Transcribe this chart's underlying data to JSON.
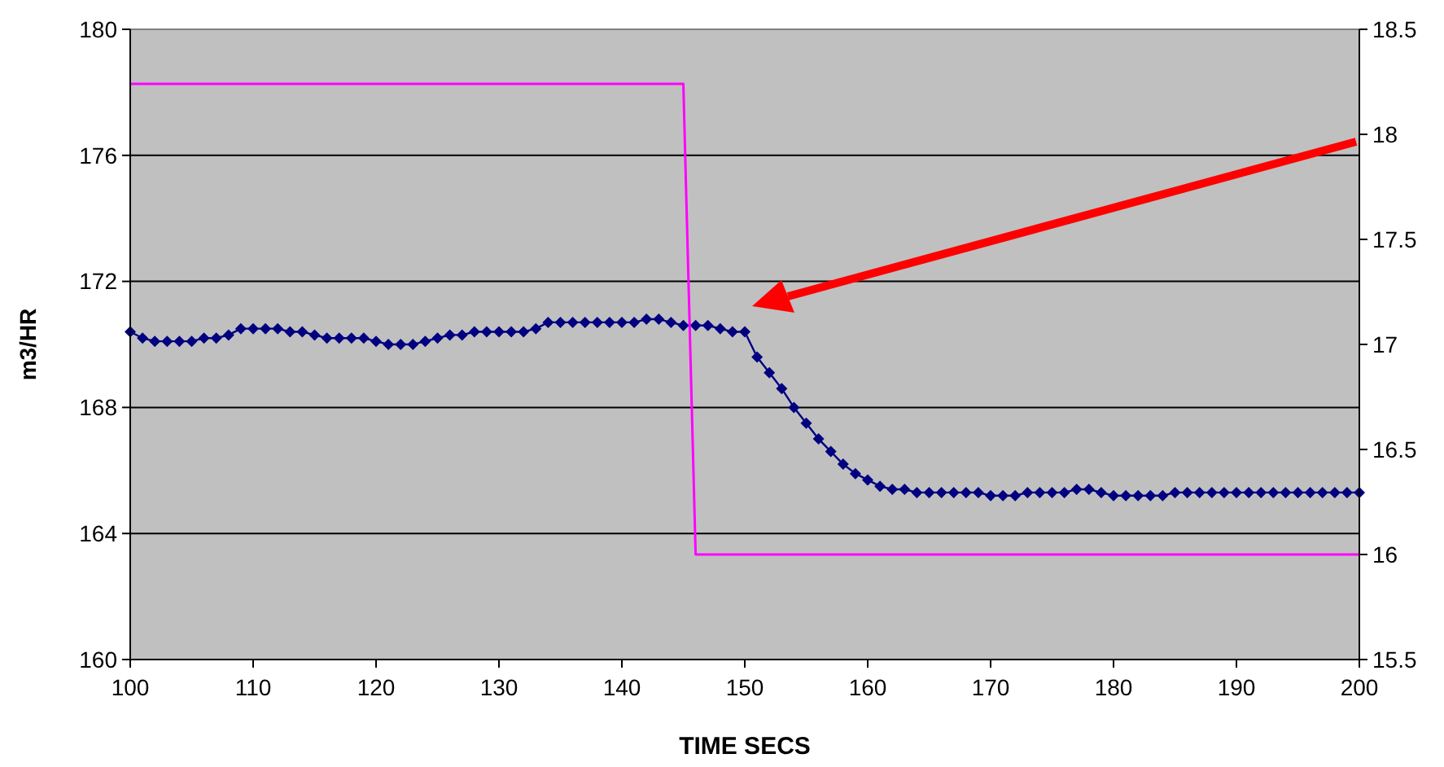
{
  "chart_data": {
    "type": "line",
    "xlabel": "TIME SECS",
    "ylabel": "m3/HR",
    "xlim": [
      100,
      200
    ],
    "xticks": [
      100,
      110,
      120,
      130,
      140,
      150,
      160,
      170,
      180,
      190,
      200
    ],
    "ylim": [
      160,
      180
    ],
    "yticks": [
      160,
      164,
      168,
      172,
      176,
      180
    ],
    "y2lim": [
      15.5,
      18.5
    ],
    "y2ticks": [
      15.5,
      16,
      16.5,
      17,
      17.5,
      18,
      18.5
    ],
    "grid": "y",
    "series": [
      {
        "color": "#000080",
        "marker": "diamond",
        "x": [
          100,
          101,
          102,
          103,
          104,
          105,
          106,
          107,
          108,
          109,
          110,
          111,
          112,
          113,
          114,
          115,
          116,
          117,
          118,
          119,
          120,
          121,
          122,
          123,
          124,
          125,
          126,
          127,
          128,
          129,
          130,
          131,
          132,
          133,
          134,
          135,
          136,
          137,
          138,
          139,
          140,
          141,
          142,
          143,
          144,
          145,
          146,
          147,
          148,
          149,
          150,
          151,
          152,
          153,
          154,
          155,
          156,
          157,
          158,
          159,
          160,
          161,
          162,
          163,
          164,
          165,
          166,
          167,
          168,
          169,
          170,
          171,
          172,
          173,
          174,
          175,
          176,
          177,
          178,
          179,
          180,
          181,
          182,
          183,
          184,
          185,
          186,
          187,
          188,
          189,
          190,
          191,
          192,
          193,
          194,
          195,
          196,
          197,
          198,
          199,
          200
        ],
        "values": [
          170.4,
          170.2,
          170.1,
          170.1,
          170.1,
          170.1,
          170.2,
          170.2,
          170.3,
          170.5,
          170.5,
          170.5,
          170.5,
          170.4,
          170.4,
          170.3,
          170.2,
          170.2,
          170.2,
          170.2,
          170.1,
          170.0,
          170.0,
          170.0,
          170.1,
          170.2,
          170.3,
          170.3,
          170.4,
          170.4,
          170.4,
          170.4,
          170.4,
          170.5,
          170.7,
          170.7,
          170.7,
          170.7,
          170.7,
          170.7,
          170.7,
          170.7,
          170.8,
          170.8,
          170.7,
          170.6,
          170.6,
          170.6,
          170.5,
          170.4,
          170.4,
          169.6,
          169.1,
          168.6,
          168.0,
          167.5,
          167.0,
          166.6,
          166.2,
          165.9,
          165.7,
          165.5,
          165.4,
          165.4,
          165.3,
          165.3,
          165.3,
          165.3,
          165.3,
          165.3,
          165.2,
          165.2,
          165.2,
          165.3,
          165.3,
          165.3,
          165.3,
          165.4,
          165.4,
          165.3,
          165.2,
          165.2,
          165.2,
          165.2,
          165.2,
          165.3,
          165.3,
          165.3,
          165.3,
          165.3,
          165.3,
          165.3,
          165.3,
          165.3,
          165.3,
          165.3,
          165.3,
          165.3,
          165.3,
          165.3,
          165.3
        ]
      },
      {
        "color": "#ff00ff",
        "marker": "none",
        "axis": "y2",
        "x": [
          100,
          145,
          146,
          200
        ],
        "values": [
          18.24,
          18.24,
          16.0,
          16.0
        ]
      }
    ]
  }
}
